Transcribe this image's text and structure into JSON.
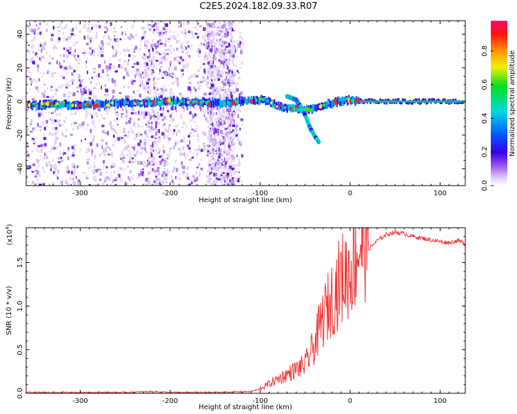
{
  "title": "C2E5.2024.182.09.33.R07",
  "chart_data": [
    {
      "type": "heatmap",
      "title": "C2E5.2024.182.09.33.R07",
      "xlabel": "Height of straight line (km)",
      "ylabel": "Frequency (Hz)",
      "xlim": [
        -360,
        128
      ],
      "ylim": [
        -50,
        48
      ],
      "xticks": [
        -300,
        -200,
        -100,
        0,
        100
      ],
      "yticks": [
        -40,
        -20,
        0,
        20,
        40
      ],
      "colorbar": {
        "label": "Normalized spectral amplitude",
        "range": [
          0,
          0.98
        ],
        "ticks": [
          "0.0",
          "0.2",
          "0.4",
          "0.6",
          "0.8"
        ],
        "colormap": "rainbow (light purple - violet - blue - cyan - green - yellow - red - magenta)"
      },
      "main_trace": {
        "x": [
          -355,
          -300,
          -250,
          -200,
          -150,
          -120,
          -100,
          -90,
          -80,
          -70,
          -60,
          -50,
          -40,
          -30,
          -20,
          -10,
          0,
          10,
          50,
          128
        ],
        "y": [
          -2,
          -2,
          -1,
          0,
          -1,
          0,
          1,
          0,
          -3,
          -4,
          -4,
          -5,
          -4,
          -3,
          -1,
          0,
          1,
          0,
          0,
          0
        ]
      },
      "secondary_trace": {
        "x": [
          -70,
          -60,
          -55,
          -50,
          -45,
          -40,
          -35
        ],
        "y": [
          3,
          1,
          -3,
          -8,
          -15,
          -20,
          -24
        ]
      },
      "grid": false
    },
    {
      "type": "line",
      "xlabel": "Height of straight line (km)",
      "ylabel": "SNR (10 * v/v)",
      "y_multiplier_label": "(x10",
      "y_multiplier_exp": "4",
      "xlim": [
        -360,
        128
      ],
      "ylim": [
        0,
        1.9
      ],
      "xticks": [
        -300,
        -200,
        -100,
        0,
        100
      ],
      "yticks": [
        "0.0",
        "0.5",
        "1.0",
        "1.5"
      ],
      "series": [
        {
          "color": "#ee3333",
          "x": [
            -360,
            -300,
            -250,
            -220,
            -200,
            -150,
            -110,
            -100,
            -90,
            -80,
            -70,
            -60,
            -50,
            -40,
            -30,
            -20,
            -10,
            0,
            10,
            20,
            30,
            40,
            50,
            60,
            70,
            80,
            90,
            100,
            110,
            120,
            128
          ],
          "y": [
            0.01,
            0.01,
            0.01,
            0.02,
            0.01,
            0.01,
            0.02,
            0.05,
            0.1,
            0.15,
            0.2,
            0.25,
            0.3,
            0.5,
            0.8,
            1.0,
            1.2,
            1.3,
            1.55,
            1.65,
            1.75,
            1.82,
            1.85,
            1.83,
            1.8,
            1.78,
            1.76,
            1.74,
            1.73,
            1.75,
            1.72
          ]
        }
      ],
      "grid": false
    }
  ]
}
